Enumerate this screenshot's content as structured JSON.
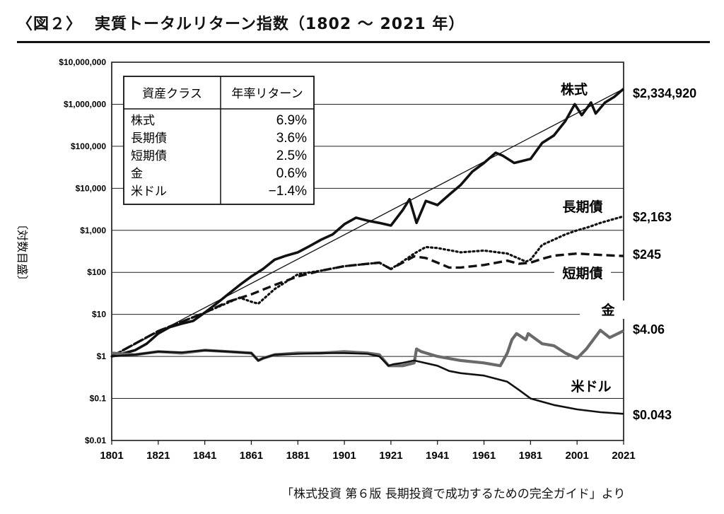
{
  "header": {
    "figure_label": "〈図２〉",
    "title": "実質トータルリターン指数（1802 ～ 2021 年）"
  },
  "source_note": "「株式投資 第６版 長期投資で成功するための完全ガイド」より",
  "chart_data": {
    "type": "line",
    "title": "実質トータルリターン指数（1802 ～ 2021 年）",
    "ylabel": "〔対数目盛〕",
    "xlabel": "",
    "y_scale": "log",
    "ylim": [
      0.01,
      10000000
    ],
    "xlim": [
      1801,
      2021
    ],
    "x_ticks": [
      "1801",
      "1821",
      "1841",
      "1861",
      "1881",
      "1901",
      "1921",
      "1941",
      "1961",
      "1981",
      "2001",
      "2021"
    ],
    "x_tick_values": [
      1801,
      1821,
      1841,
      1861,
      1881,
      1901,
      1921,
      1941,
      1961,
      1981,
      2001,
      2021
    ],
    "y_ticks": [
      "$10,000,000",
      "$1,000,000",
      "$100,000",
      "$10,000",
      "$1,000",
      "$100",
      "$10",
      "$1",
      "$0.1",
      "$0.01"
    ],
    "y_tick_values": [
      10000000,
      1000000,
      100000,
      10000,
      1000,
      100,
      10,
      1,
      0.1,
      0.01
    ],
    "grid": "horizontal",
    "table": {
      "headers": [
        "資産クラス",
        "年率リターン"
      ],
      "rows": [
        [
          "株式",
          "6.9%"
        ],
        [
          "長期債",
          "3.6%"
        ],
        [
          "短期債",
          "2.5%"
        ],
        [
          "金",
          "0.6%"
        ],
        [
          "米ドル",
          "−1.4%"
        ]
      ]
    },
    "series": [
      {
        "name": "株式",
        "end_label": "$2,334,920",
        "style": "solid-thick",
        "color": "#111111",
        "x": [
          1801,
          1811,
          1816,
          1821,
          1826,
          1831,
          1836,
          1841,
          1846,
          1851,
          1856,
          1861,
          1866,
          1871,
          1876,
          1881,
          1886,
          1891,
          1896,
          1901,
          1906,
          1911,
          1916,
          1921,
          1926,
          1929,
          1932,
          1936,
          1941,
          1946,
          1951,
          1956,
          1961,
          1966,
          1969,
          1974,
          1981,
          1986,
          1991,
          1996,
          2000,
          2003,
          2007,
          2009,
          2013,
          2017,
          2021
        ],
        "y": [
          1,
          1.4,
          2,
          3.5,
          5,
          6,
          7,
          11,
          18,
          30,
          50,
          80,
          120,
          200,
          250,
          300,
          420,
          600,
          800,
          1400,
          2000,
          1700,
          1500,
          1300,
          3000,
          5500,
          1500,
          5000,
          4000,
          7000,
          12000,
          25000,
          40000,
          70000,
          60000,
          40000,
          50000,
          120000,
          180000,
          400000,
          1000000,
          550000,
          1100000,
          600000,
          1100000,
          1500000,
          2334920
        ]
      },
      {
        "name": "株式トレンド",
        "style": "thin",
        "color": "#111111",
        "x": [
          1801,
          2021
        ],
        "y": [
          1,
          2334920
        ]
      },
      {
        "name": "長期債",
        "end_label": "$2,163",
        "style": "dotted",
        "color": "#111111",
        "x": [
          1801,
          1821,
          1841,
          1856,
          1861,
          1864,
          1871,
          1881,
          1891,
          1901,
          1911,
          1916,
          1921,
          1926,
          1931,
          1936,
          1941,
          1951,
          1961,
          1971,
          1979,
          1981,
          1986,
          1991,
          1996,
          2001,
          2006,
          2011,
          2016,
          2021
        ],
        "y": [
          1,
          4,
          11,
          25,
          20,
          18,
          40,
          90,
          110,
          140,
          160,
          170,
          120,
          180,
          280,
          400,
          380,
          300,
          330,
          280,
          180,
          200,
          450,
          600,
          800,
          1000,
          1200,
          1500,
          1800,
          2163
        ]
      },
      {
        "name": "短期債",
        "end_label": "$245",
        "style": "dashed",
        "color": "#111111",
        "x": [
          1801,
          1821,
          1841,
          1851,
          1861,
          1871,
          1881,
          1891,
          1901,
          1911,
          1916,
          1921,
          1926,
          1931,
          1936,
          1941,
          1946,
          1951,
          1961,
          1971,
          1976,
          1981,
          1986,
          1991,
          2001,
          2011,
          2021
        ],
        "y": [
          1,
          4,
          11,
          20,
          30,
          50,
          80,
          110,
          140,
          160,
          170,
          120,
          170,
          240,
          220,
          170,
          130,
          130,
          150,
          190,
          160,
          170,
          210,
          250,
          280,
          260,
          245
        ]
      },
      {
        "name": "金",
        "end_label": "$4.06",
        "style": "solid-gray",
        "color": "#6a6a6a",
        "x": [
          1801,
          1811,
          1821,
          1831,
          1841,
          1851,
          1861,
          1864,
          1866,
          1871,
          1881,
          1891,
          1901,
          1911,
          1916,
          1920,
          1926,
          1931,
          1932,
          1934,
          1941,
          1951,
          1961,
          1968,
          1971,
          1973,
          1975,
          1979,
          1980,
          1986,
          1991,
          1996,
          2001,
          2005,
          2011,
          2015,
          2021
        ],
        "y": [
          1.2,
          1.1,
          1.3,
          1.2,
          1.4,
          1.3,
          1.2,
          0.8,
          0.9,
          1.1,
          1.2,
          1.2,
          1.3,
          1.2,
          1.1,
          0.6,
          0.6,
          0.7,
          1.5,
          1.3,
          1.0,
          0.8,
          0.7,
          0.6,
          1.2,
          2.5,
          3.5,
          2.5,
          3.5,
          2.0,
          1.8,
          1.2,
          0.9,
          1.5,
          4.2,
          2.8,
          4.06
        ]
      },
      {
        "name": "米ドル",
        "end_label": "$0.043",
        "style": "solid",
        "color": "#111111",
        "x": [
          1801,
          1811,
          1821,
          1831,
          1841,
          1851,
          1861,
          1864,
          1866,
          1871,
          1881,
          1891,
          1901,
          1911,
          1916,
          1920,
          1922,
          1926,
          1931,
          1941,
          1946,
          1951,
          1961,
          1971,
          1976,
          1981,
          1991,
          2001,
          2011,
          2021
        ],
        "y": [
          1.0,
          1.1,
          1.3,
          1.25,
          1.4,
          1.3,
          1.2,
          0.8,
          0.9,
          1.1,
          1.15,
          1.2,
          1.2,
          1.15,
          1.0,
          0.6,
          0.65,
          0.7,
          0.8,
          0.6,
          0.45,
          0.4,
          0.35,
          0.25,
          0.16,
          0.1,
          0.07,
          0.055,
          0.047,
          0.043
        ]
      }
    ]
  }
}
